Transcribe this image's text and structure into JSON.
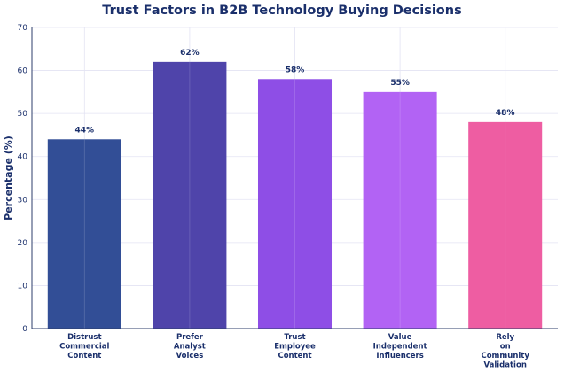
{
  "chart_data": {
    "type": "bar",
    "title": "Trust Factors in B2B Technology Buying Decisions",
    "xlabel": "",
    "ylabel": "Percentage (%)",
    "ylim": [
      0,
      70
    ],
    "yticks": [
      0,
      10,
      20,
      30,
      40,
      50,
      60,
      70
    ],
    "grid": true,
    "categories": [
      [
        "Distrust",
        "Commercial",
        "Content"
      ],
      [
        "Prefer",
        "Analyst",
        "Voices"
      ],
      [
        "Trust",
        "Employee",
        "Content"
      ],
      [
        "Value",
        "Independent",
        "Influencers"
      ],
      [
        "Rely",
        "on",
        "Community",
        "Validation"
      ]
    ],
    "values": [
      44,
      62,
      58,
      55,
      48
    ],
    "data_labels": [
      "44%",
      "62%",
      "58%",
      "55%",
      "48%"
    ],
    "colors": [
      "#2e4a94",
      "#4b40a8",
      "#8c4ae6",
      "#b060f4",
      "#ee5aa0"
    ]
  }
}
